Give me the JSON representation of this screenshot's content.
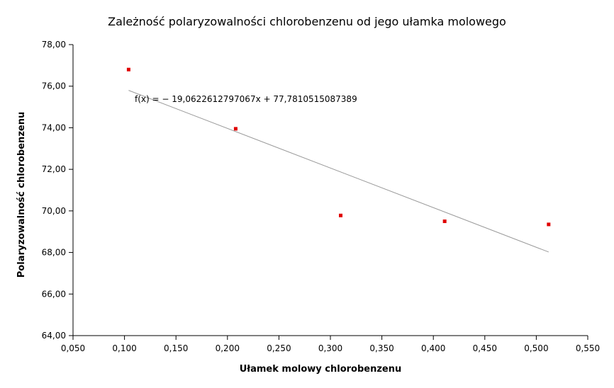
{
  "chart_data": {
    "type": "scatter",
    "title": "Zależność polaryzowalności chlorobenzenu od jego ułamka molowego",
    "xlabel": "Ułamek molowy chlorobenzenu",
    "ylabel": "Polaryzowalność chlorobenzenu",
    "xlim": [
      0.05,
      0.55
    ],
    "ylim": [
      64,
      78
    ],
    "x_ticks": [
      "0,050",
      "0,100",
      "0,150",
      "0,200",
      "0,250",
      "0,300",
      "0,350",
      "0,400",
      "0,450",
      "0,500",
      "0,550"
    ],
    "y_ticks": [
      "64,00",
      "66,00",
      "68,00",
      "70,00",
      "72,00",
      "74,00",
      "76,00",
      "78,00"
    ],
    "x_tick_values": [
      0.05,
      0.1,
      0.15,
      0.2,
      0.25,
      0.3,
      0.35,
      0.4,
      0.45,
      0.5,
      0.55
    ],
    "y_tick_values": [
      64,
      66,
      68,
      70,
      72,
      74,
      76,
      78
    ],
    "series": [
      {
        "x": [
          0.104,
          0.208,
          0.31,
          0.411,
          0.512
        ],
        "y": [
          76.8,
          73.95,
          69.78,
          69.5,
          69.35
        ],
        "color": "#e00000"
      }
    ],
    "trendline": {
      "slope": -19.0622612797067,
      "intercept": 77.7810515087389,
      "x_range": [
        0.104,
        0.512
      ],
      "color": "#999999",
      "equation": "f(x) = − 19,0622612797067x + 77,7810515087389"
    },
    "grid": false,
    "legend": "none"
  }
}
